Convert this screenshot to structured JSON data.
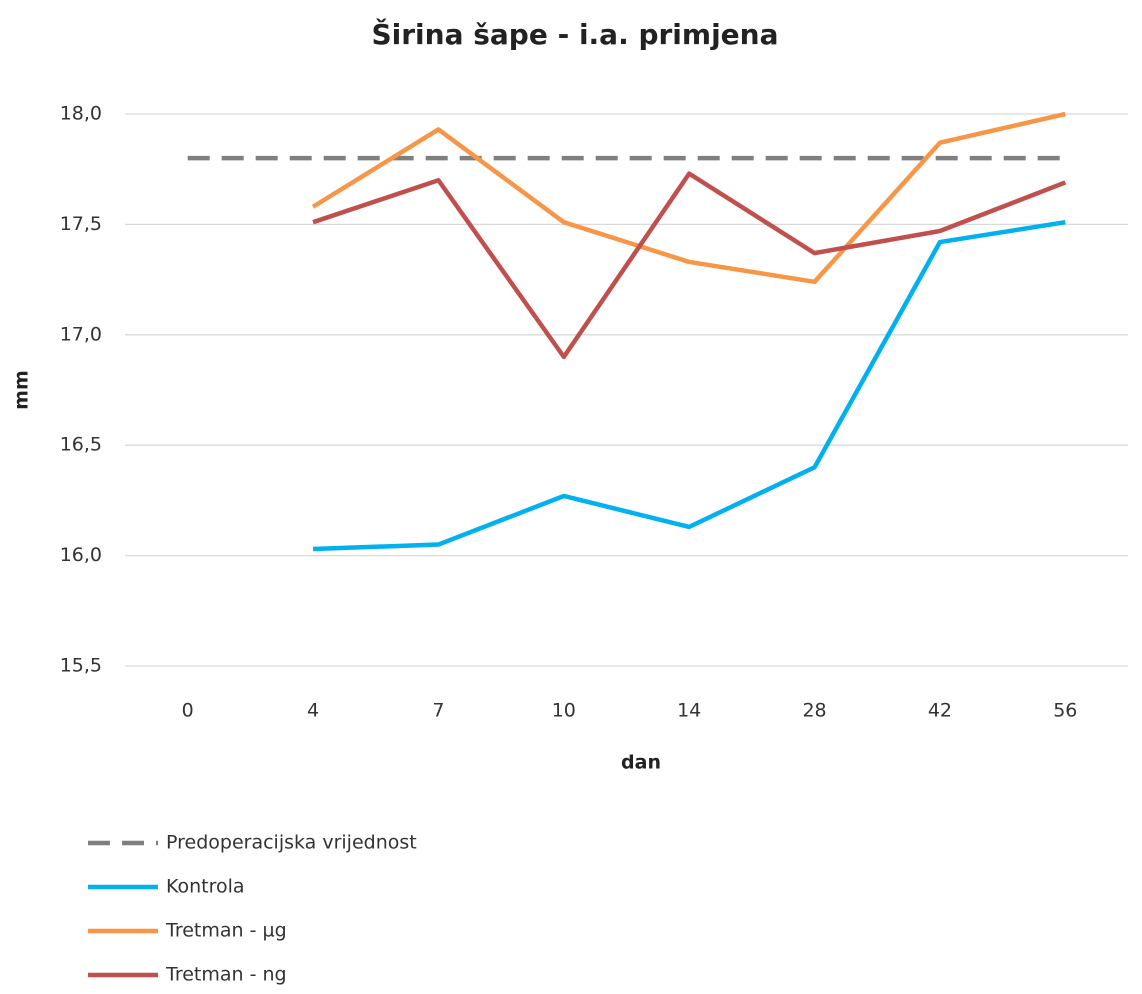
{
  "chart_data": {
    "type": "line",
    "title": "Širina šape - i.a. primjena",
    "xlabel": "dan",
    "ylabel": "mm",
    "categories": [
      "0",
      "4",
      "7",
      "10",
      "14",
      "28",
      "42",
      "56"
    ],
    "ylim": [
      15.5,
      18.0
    ],
    "yticks": [
      {
        "value": 15.5,
        "label": "15,5"
      },
      {
        "value": 16.0,
        "label": "16,0"
      },
      {
        "value": 16.5,
        "label": "16,5"
      },
      {
        "value": 17.0,
        "label": "17,0"
      },
      {
        "value": 17.5,
        "label": "17,5"
      },
      {
        "value": 18.0,
        "label": "18,0"
      }
    ],
    "grid": true,
    "legend": "bottom",
    "series": [
      {
        "name": "Predoperacijska vrijednost",
        "color": "#7f7f7f",
        "dashed": true,
        "values": [
          17.8,
          17.8,
          17.8,
          17.8,
          17.8,
          17.8,
          17.8,
          17.8
        ]
      },
      {
        "name": "Kontrola",
        "color": "#00b0f0",
        "values": [
          null,
          16.03,
          16.05,
          16.27,
          16.13,
          16.4,
          17.42,
          17.51
        ]
      },
      {
        "name": "Tretman - µg",
        "color": "#f79646",
        "values": [
          null,
          17.58,
          17.93,
          17.51,
          17.33,
          17.24,
          17.87,
          18.0
        ]
      },
      {
        "name": "Tretman - ng",
        "color": "#c0504d",
        "values": [
          null,
          17.51,
          17.7,
          16.9,
          17.73,
          17.37,
          17.47,
          17.69
        ]
      }
    ]
  }
}
